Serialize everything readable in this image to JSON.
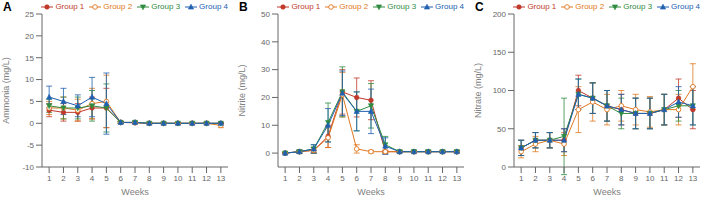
{
  "chart_data": [
    {
      "type": "line",
      "title": "A",
      "x_label": "Weeks",
      "y_label": "Ammonia (mg/L)",
      "x": [
        1,
        2,
        3,
        4,
        5,
        6,
        7,
        8,
        9,
        10,
        11,
        12,
        13
      ],
      "xlim": [
        0.5,
        13.5
      ],
      "xticks": [
        1,
        2,
        3,
        4,
        5,
        6,
        7,
        8,
        9,
        10,
        11,
        12,
        13
      ],
      "ylim": [
        -10,
        25
      ],
      "yticks": [
        -10,
        -5,
        0,
        5,
        10,
        15,
        20,
        25
      ],
      "grid": false,
      "legend": "upper right",
      "series": [
        {
          "name": "Group 1",
          "color": "#c0392b",
          "marker": "circle",
          "values": [
            3.0,
            2.5,
            2.5,
            3.5,
            3.5,
            0.2,
            0.1,
            0.0,
            0.0,
            0.0,
            0.0,
            0.0,
            0.0
          ],
          "errors": [
            1.5,
            2.0,
            2.0,
            2.5,
            4.5,
            0.2,
            0.1,
            0.1,
            0.1,
            0.1,
            0.1,
            0.1,
            0.1
          ]
        },
        {
          "name": "Group 2",
          "color": "#e07820",
          "marker": "circle-open",
          "values": [
            3.5,
            3.5,
            3.0,
            4.5,
            5.0,
            0.2,
            0.2,
            0.0,
            0.0,
            0.0,
            0.0,
            0.0,
            -0.5
          ],
          "errors": [
            1.5,
            2.5,
            2.5,
            3.5,
            6.0,
            0.2,
            0.2,
            0.1,
            0.1,
            0.1,
            0.1,
            0.1,
            0.5
          ]
        },
        {
          "name": "Group 3",
          "color": "#2e8b40",
          "marker": "triangle-down",
          "values": [
            4.0,
            3.5,
            3.5,
            4.0,
            3.5,
            0.2,
            0.2,
            0.0,
            0.0,
            0.0,
            0.0,
            0.0,
            0.0
          ],
          "errors": [
            1.5,
            2.5,
            2.5,
            3.5,
            5.5,
            0.2,
            0.2,
            0.1,
            0.1,
            0.1,
            0.1,
            0.1,
            0.1
          ]
        },
        {
          "name": "Group 4",
          "color": "#2060b0",
          "marker": "triangle-up",
          "values": [
            6.0,
            5.0,
            4.0,
            6.0,
            4.5,
            0.2,
            0.2,
            0.0,
            0.0,
            0.0,
            0.0,
            0.0,
            0.0
          ],
          "errors": [
            2.5,
            3.0,
            2.5,
            4.5,
            7.0,
            0.2,
            0.2,
            0.1,
            0.1,
            0.1,
            0.1,
            0.1,
            0.1
          ]
        }
      ]
    },
    {
      "type": "line",
      "title": "B",
      "x_label": "Weeks",
      "y_label": "Nitrite (mg/L)",
      "x": [
        1,
        2,
        3,
        4,
        5,
        6,
        7,
        8,
        9,
        10,
        11,
        12,
        13
      ],
      "xlim": [
        0.5,
        13.5
      ],
      "xticks": [
        1,
        2,
        3,
        4,
        5,
        6,
        7,
        8,
        9,
        10,
        11,
        12,
        13
      ],
      "ylim": [
        -5,
        50
      ],
      "yticks": [
        0,
        10,
        20,
        30,
        40,
        50
      ],
      "grid": false,
      "legend": "upper right",
      "series": [
        {
          "name": "Group 1",
          "color": "#c0392b",
          "marker": "circle",
          "values": [
            0.0,
            0.5,
            1.0,
            6.0,
            22.0,
            20.0,
            19.0,
            0.5,
            0.5,
            0.5,
            0.5,
            0.5,
            0.5
          ],
          "errors": [
            0.2,
            0.5,
            1.0,
            4.0,
            8.0,
            7.0,
            7.0,
            0.5,
            0.3,
            0.3,
            0.3,
            0.3,
            0.3
          ]
        },
        {
          "name": "Group 2",
          "color": "#e07820",
          "marker": "circle-open",
          "values": [
            0.0,
            0.5,
            1.0,
            5.5,
            21.0,
            1.5,
            0.5,
            0.5,
            0.5,
            0.5,
            0.5,
            0.5,
            0.5
          ],
          "errors": [
            0.2,
            0.5,
            1.0,
            3.5,
            8.0,
            1.5,
            0.5,
            0.5,
            0.3,
            0.3,
            0.3,
            0.3,
            0.3
          ]
        },
        {
          "name": "Group 3",
          "color": "#2e8b40",
          "marker": "triangle-down",
          "values": [
            0.0,
            0.5,
            1.5,
            11.0,
            22.0,
            15.0,
            17.0,
            3.0,
            0.5,
            0.5,
            0.5,
            0.5,
            0.5
          ],
          "errors": [
            0.2,
            0.5,
            1.5,
            7.0,
            9.0,
            7.0,
            8.0,
            3.0,
            0.3,
            0.3,
            0.3,
            0.3,
            0.3
          ]
        },
        {
          "name": "Group 4",
          "color": "#2060b0",
          "marker": "triangle-up",
          "values": [
            0.0,
            0.5,
            1.5,
            10.0,
            21.5,
            15.0,
            15.0,
            2.5,
            0.5,
            0.5,
            0.5,
            0.5,
            0.5
          ],
          "errors": [
            0.2,
            0.5,
            1.5,
            6.0,
            8.0,
            7.0,
            8.0,
            3.0,
            0.3,
            0.3,
            0.3,
            0.3,
            0.3
          ]
        }
      ]
    },
    {
      "type": "line",
      "title": "C",
      "x_label": "Weeks",
      "y_label": "Nitrate (mg/L)",
      "x": [
        1,
        2,
        3,
        4,
        5,
        6,
        7,
        8,
        9,
        10,
        11,
        12,
        13
      ],
      "xlim": [
        0.5,
        13.5
      ],
      "xticks": [
        1,
        2,
        3,
        4,
        5,
        6,
        7,
        8,
        9,
        10,
        11,
        12,
        13
      ],
      "ylim": [
        0,
        200
      ],
      "yticks": [
        0,
        50,
        100,
        150,
        200
      ],
      "grid": false,
      "legend": "upper right",
      "series": [
        {
          "name": "Group 1",
          "color": "#c0392b",
          "marker": "circle",
          "values": [
            25.0,
            35.0,
            35.0,
            35.0,
            100.0,
            90.0,
            80.0,
            75.0,
            70.0,
            70.0,
            75.0,
            90.0,
            75.0
          ],
          "errors": [
            10.0,
            10.0,
            10.0,
            15.0,
            20.0,
            20.0,
            20.0,
            20.0,
            20.0,
            20.0,
            20.0,
            25.0,
            25.0
          ]
        },
        {
          "name": "Group 2",
          "color": "#e07820",
          "marker": "circle-open",
          "values": [
            20.0,
            30.0,
            35.0,
            30.0,
            75.0,
            85.0,
            75.0,
            80.0,
            75.0,
            72.0,
            75.0,
            75.0,
            105.0
          ],
          "errors": [
            8.0,
            10.0,
            10.0,
            15.0,
            30.0,
            25.0,
            20.0,
            20.0,
            20.0,
            20.0,
            20.0,
            20.0,
            30.0
          ]
        },
        {
          "name": "Group 3",
          "color": "#2e8b40",
          "marker": "triangle-down",
          "values": [
            25.0,
            35.0,
            35.0,
            40.0,
            95.0,
            90.0,
            80.0,
            70.0,
            70.0,
            70.0,
            75.0,
            80.0,
            80.0
          ],
          "errors": [
            10.0,
            10.0,
            10.0,
            50.0,
            20.0,
            20.0,
            20.0,
            20.0,
            20.0,
            20.0,
            20.0,
            20.0,
            25.0
          ]
        },
        {
          "name": "Group 4",
          "color": "#2060b0",
          "marker": "triangle-up",
          "values": [
            25.0,
            35.0,
            35.0,
            35.0,
            95.0,
            90.0,
            80.0,
            75.0,
            70.0,
            70.0,
            75.0,
            85.0,
            80.0
          ],
          "errors": [
            10.0,
            10.0,
            10.0,
            15.0,
            20.0,
            20.0,
            20.0,
            20.0,
            20.0,
            20.0,
            20.0,
            20.0,
            25.0
          ]
        }
      ]
    }
  ]
}
